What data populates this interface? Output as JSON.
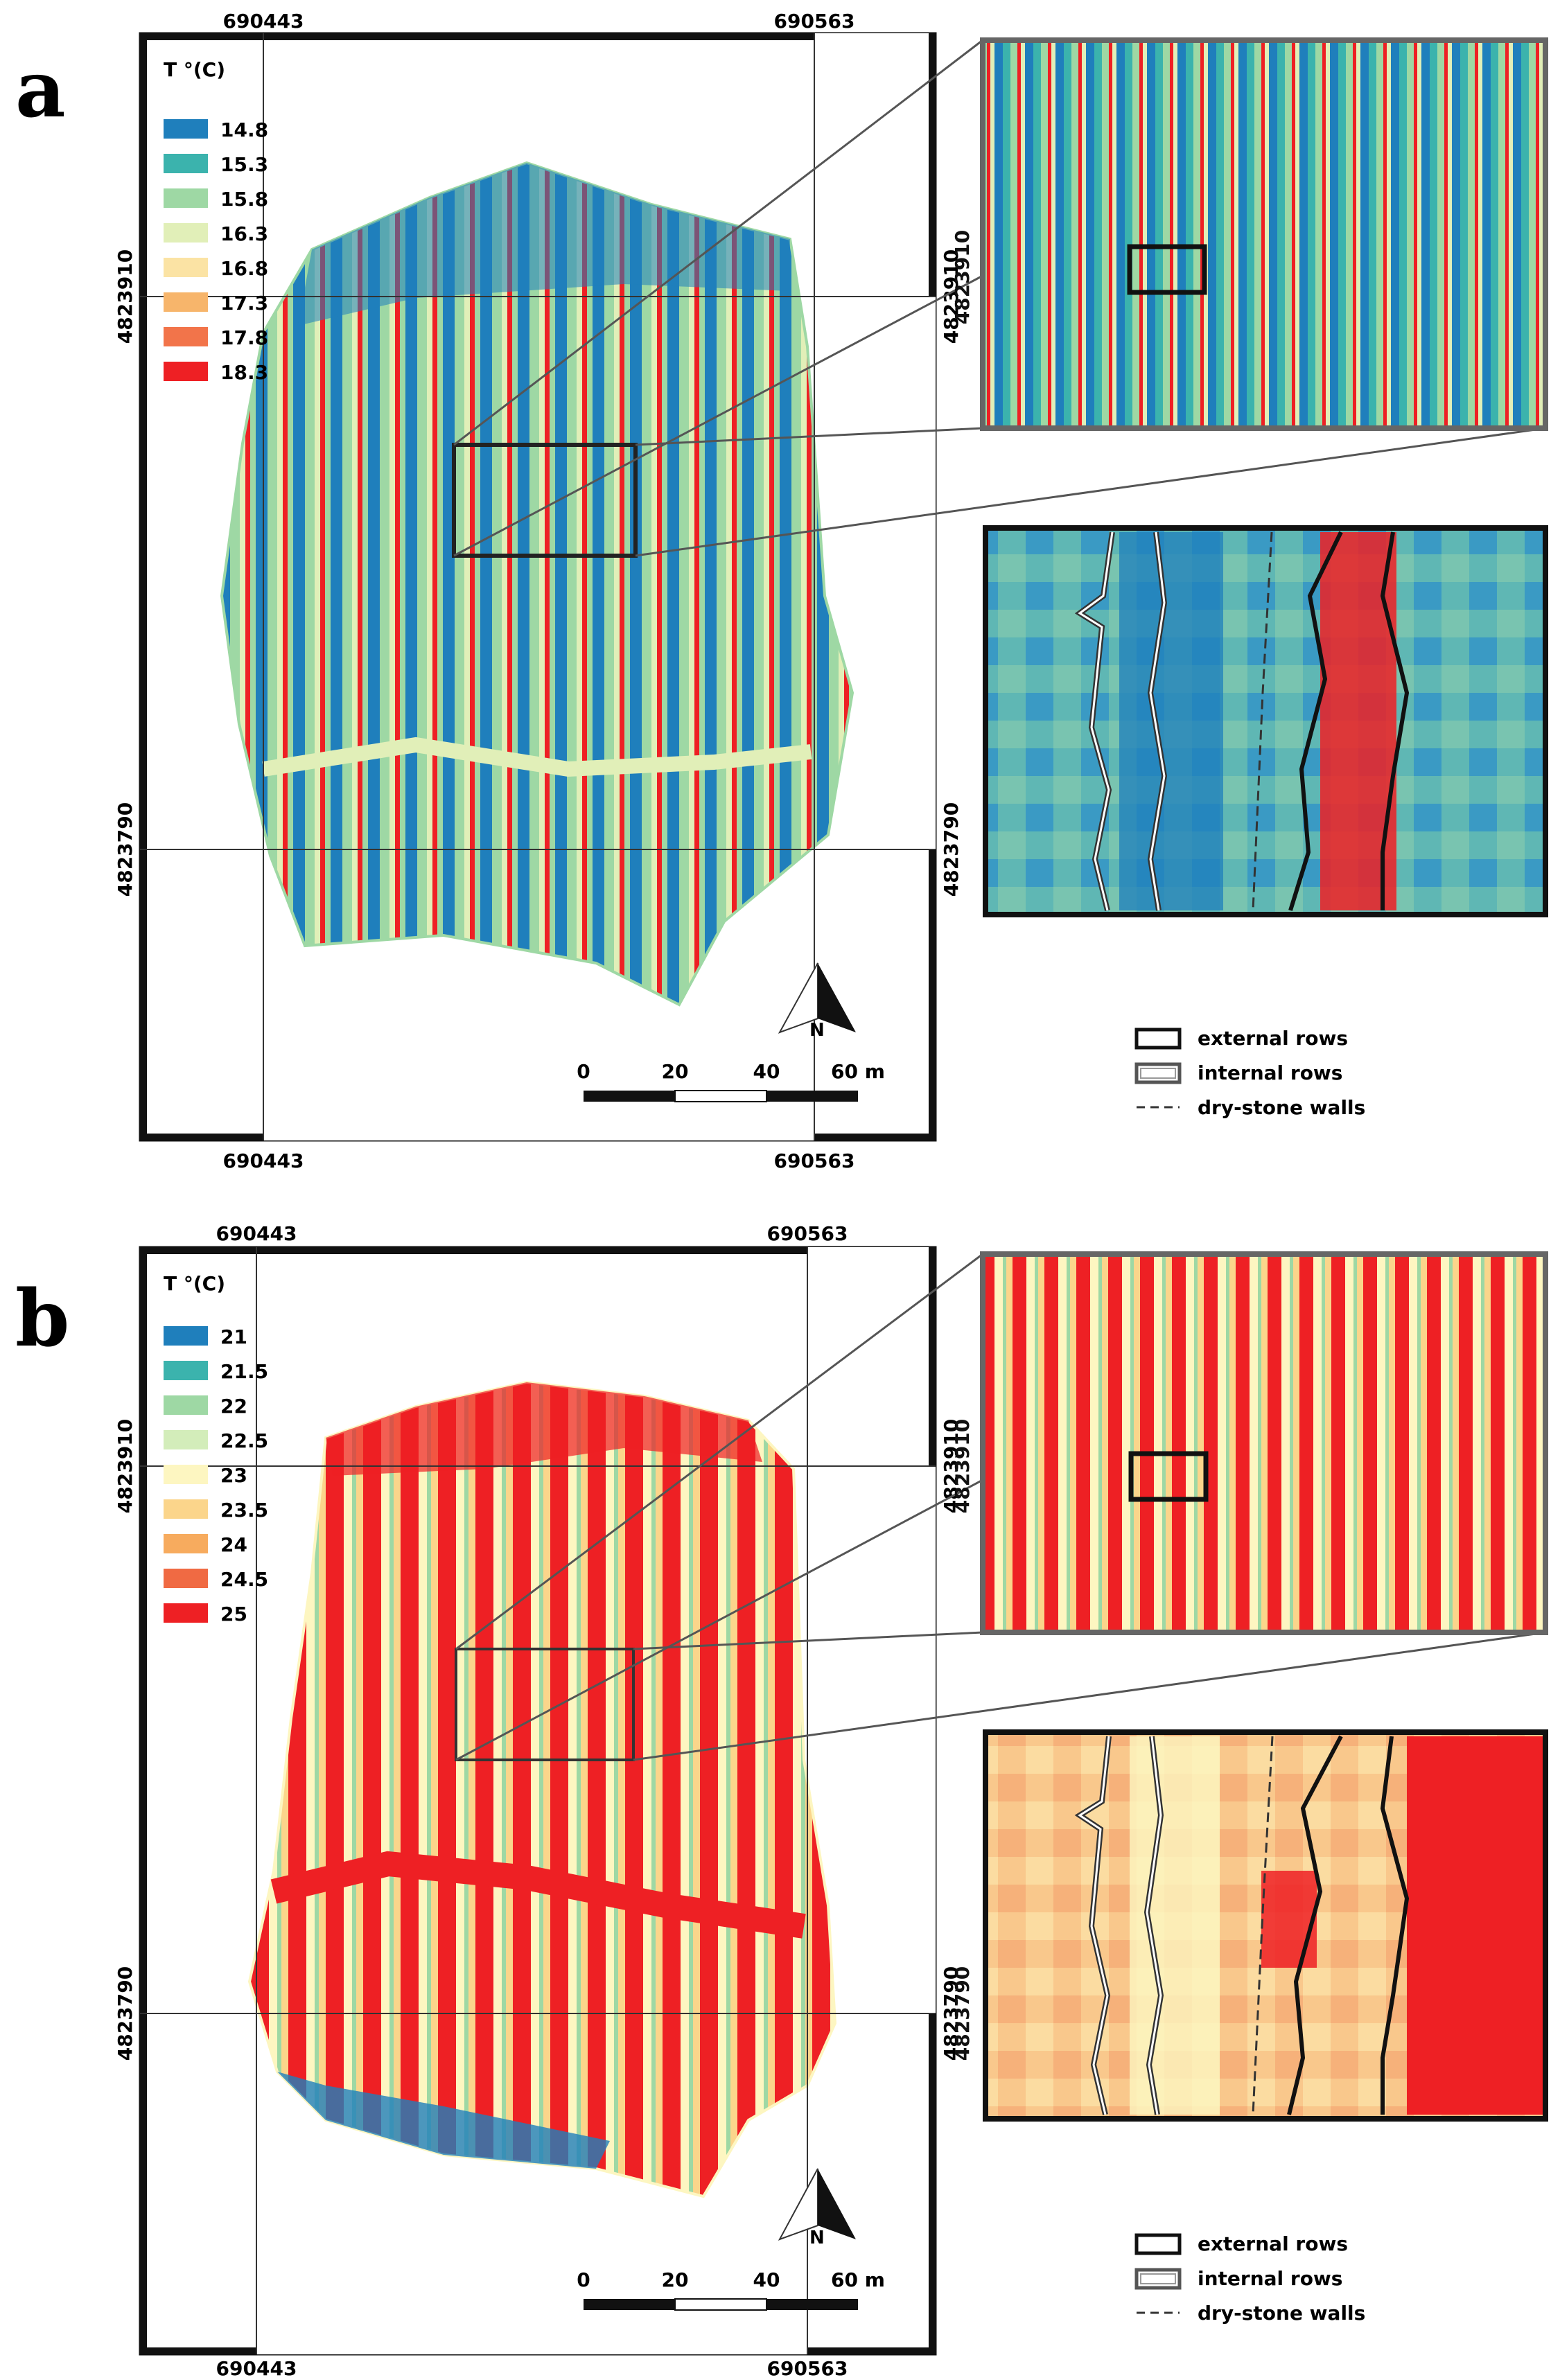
{
  "panels": [
    {
      "letter": "a",
      "coords": {
        "x_left": "690443",
        "x_right": "690563",
        "y_top": "4823910",
        "y_bottom": "4823790"
      },
      "legend": {
        "title": "T °(C)",
        "items": [
          {
            "label": "14.8",
            "color": "#1f7fbc"
          },
          {
            "label": "15.3",
            "color": "#3bb3ad"
          },
          {
            "label": "15.8",
            "color": "#9ed8a4"
          },
          {
            "label": "16.3",
            "color": "#e1efb8"
          },
          {
            "label": "16.8",
            "color": "#fbe3a4"
          },
          {
            "label": "17.3",
            "color": "#f7b56b"
          },
          {
            "label": "17.8",
            "color": "#f2744a"
          },
          {
            "label": "18.3",
            "color": "#ee2024"
          }
        ]
      },
      "scalebar": {
        "ticks": [
          "0",
          "20",
          "40",
          "60 m"
        ]
      },
      "north": "N",
      "key": {
        "external": "external rows",
        "internal": "internal rows",
        "walls": "dry-stone walls"
      }
    },
    {
      "letter": "b",
      "coords": {
        "x_left": "690443",
        "x_right": "690563",
        "y_top": "4823910",
        "y_bottom": "4823790"
      },
      "legend": {
        "title": "T °(C)",
        "items": [
          {
            "label": "21",
            "color": "#1f7fbc"
          },
          {
            "label": "21.5",
            "color": "#3bb3ad"
          },
          {
            "label": "22",
            "color": "#9ed8a4"
          },
          {
            "label": "22.5",
            "color": "#d3edba"
          },
          {
            "label": "23",
            "color": "#fdf6c1"
          },
          {
            "label": "23.5",
            "color": "#fbd58b"
          },
          {
            "label": "24",
            "color": "#f7ab5e"
          },
          {
            "label": "24.5",
            "color": "#f06a43"
          },
          {
            "label": "25",
            "color": "#ee2024"
          }
        ]
      },
      "scalebar": {
        "ticks": [
          "0",
          "20",
          "40",
          "60 m"
        ]
      },
      "north": "N",
      "key": {
        "external": "external rows",
        "internal": "internal rows",
        "walls": "dry-stone walls"
      }
    }
  ]
}
